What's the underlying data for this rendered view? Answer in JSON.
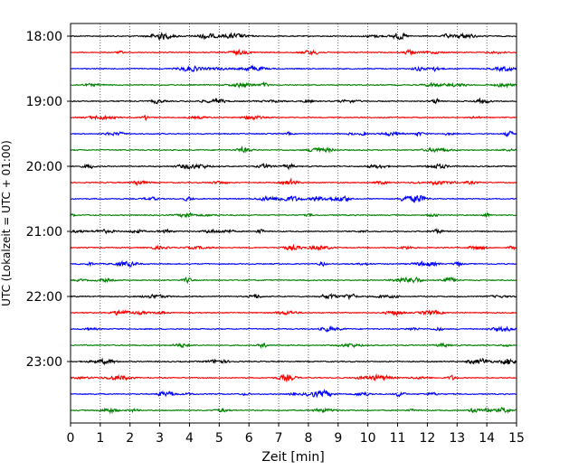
{
  "chart_data": {
    "type": "line",
    "xlabel": "Zeit  [min]",
    "ylabel": "UTC (Lokalzeit = UTC + 01:00)",
    "xlim": [
      0,
      15
    ],
    "x_ticks": [
      "0",
      "1",
      "2",
      "3",
      "4",
      "5",
      "6",
      "7",
      "8",
      "9",
      "10",
      "11",
      "12",
      "13",
      "14",
      "15"
    ],
    "y_ticks": [
      {
        "row": 0,
        "label": "18:00"
      },
      {
        "row": 4,
        "label": "19:00"
      },
      {
        "row": 8,
        "label": "20:00"
      },
      {
        "row": 12,
        "label": "21:00"
      },
      {
        "row": 16,
        "label": "22:00"
      },
      {
        "row": 20,
        "label": "23:00"
      }
    ],
    "traces": [
      {
        "start": "18:00",
        "color": "#000000"
      },
      {
        "start": "18:15",
        "color": "#ff0000"
      },
      {
        "start": "18:30",
        "color": "#0000ff"
      },
      {
        "start": "18:45",
        "color": "#008000"
      },
      {
        "start": "19:00",
        "color": "#000000"
      },
      {
        "start": "19:15",
        "color": "#ff0000"
      },
      {
        "start": "19:30",
        "color": "#0000ff"
      },
      {
        "start": "19:45",
        "color": "#008000"
      },
      {
        "start": "20:00",
        "color": "#000000"
      },
      {
        "start": "20:15",
        "color": "#ff0000"
      },
      {
        "start": "20:30",
        "color": "#0000ff"
      },
      {
        "start": "20:45",
        "color": "#008000"
      },
      {
        "start": "21:00",
        "color": "#000000"
      },
      {
        "start": "21:15",
        "color": "#ff0000"
      },
      {
        "start": "21:30",
        "color": "#0000ff"
      },
      {
        "start": "21:45",
        "color": "#008000"
      },
      {
        "start": "22:00",
        "color": "#000000"
      },
      {
        "start": "22:15",
        "color": "#ff0000"
      },
      {
        "start": "22:30",
        "color": "#0000ff"
      },
      {
        "start": "22:45",
        "color": "#008000"
      },
      {
        "start": "23:00",
        "color": "#000000"
      },
      {
        "start": "23:15",
        "color": "#ff0000"
      },
      {
        "start": "23:30",
        "color": "#0000ff"
      },
      {
        "start": "23:45",
        "color": "#008000"
      }
    ],
    "grid": "vertical-dotted"
  }
}
